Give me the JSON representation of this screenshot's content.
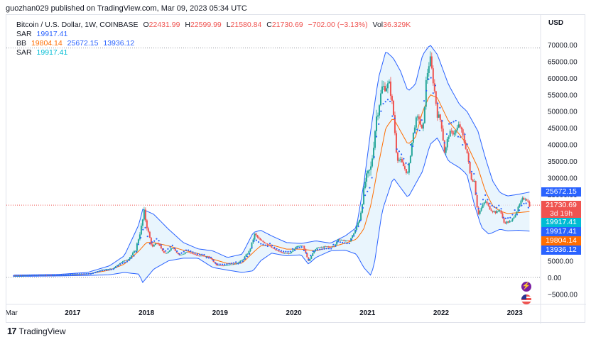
{
  "header": {
    "published": "guozhan029 published on TradingView.com, Mar 09, 2023 05:34 UTC"
  },
  "legend": {
    "title": "Bitcoin / U.S. Dollar, 1W, COINBASE",
    "o_label": "O",
    "o": "22431.99",
    "h_label": "H",
    "h": "22599.99",
    "l_label": "L",
    "l": "21580.84",
    "c_label": "C",
    "c": "21730.69",
    "change": "−702.00 (−3.13%)",
    "vol_label": "Vol",
    "vol": "36.329K",
    "sar1_label": "SAR",
    "sar1": "19917.41",
    "bb_label": "BB",
    "bb1": "19804.14",
    "bb2": "25672.15",
    "bb3": "13936.12",
    "sar2_label": "SAR",
    "sar2": "19917.41"
  },
  "axis": {
    "currency": "USD"
  },
  "tags": {
    "upper": "25672.15",
    "price": "21730.69",
    "countdown": "3d 19h",
    "sar_a": "19917.41",
    "sar_b": "19917.41",
    "mid": "19804.14",
    "lower": "13936.12"
  },
  "footer": {
    "brand": "TradingView"
  },
  "colors": {
    "up": "#26a69a",
    "down": "#ef5350",
    "band": "#2962ff",
    "basis": "#ff6d00",
    "sar": "#2962ff",
    "sar_tag": "#00bcd4",
    "bandfill": "#e3f2fd"
  },
  "chart_data": {
    "type": "candlestick",
    "title": "Bitcoin / U.S. Dollar, 1W, COINBASE",
    "ylim": [
      -7500,
      75000
    ],
    "y_ticks": [
      -5000,
      0,
      5000,
      10000,
      15000,
      20000,
      25000,
      30000,
      35000,
      40000,
      45000,
      50000,
      55000,
      60000,
      65000,
      70000
    ],
    "y_tick_labels": [
      "−5000.00",
      "0.00",
      "5000.00",
      "10000.00",
      "15000.00",
      "20000.00",
      "25000.00",
      "30000.00",
      "35000.00",
      "40000.00",
      "45000.00",
      "50000.00",
      "55000.00",
      "60000.00",
      "65000.00",
      "70000.00"
    ],
    "x_ticks": [
      {
        "year": 2016.17,
        "label": "Mar"
      },
      {
        "year": 2017,
        "label": "2017"
      },
      {
        "year": 2018,
        "label": "2018"
      },
      {
        "year": 2019,
        "label": "2019"
      },
      {
        "year": 2020,
        "label": "2020"
      },
      {
        "year": 2021,
        "label": "2021"
      },
      {
        "year": 2022,
        "label": "2022"
      },
      {
        "year": 2023,
        "label": "2023"
      }
    ],
    "xlim": [
      2016.1,
      2023.35
    ],
    "price_line": 21730.69,
    "max_line": 69000,
    "close_series": [
      [
        2016.2,
        420
      ],
      [
        2016.5,
        650
      ],
      [
        2016.9,
        750
      ],
      [
        2017.0,
        1000
      ],
      [
        2017.25,
        1200
      ],
      [
        2017.4,
        2300
      ],
      [
        2017.55,
        2700
      ],
      [
        2017.65,
        4500
      ],
      [
        2017.75,
        5500
      ],
      [
        2017.85,
        8000
      ],
      [
        2017.93,
        15000
      ],
      [
        2017.97,
        19500
      ],
      [
        2018.02,
        14000
      ],
      [
        2018.08,
        9000
      ],
      [
        2018.15,
        10500
      ],
      [
        2018.25,
        7000
      ],
      [
        2018.35,
        9000
      ],
      [
        2018.45,
        6500
      ],
      [
        2018.55,
        7800
      ],
      [
        2018.7,
        6500
      ],
      [
        2018.85,
        6300
      ],
      [
        2018.95,
        3700
      ],
      [
        2019.05,
        3600
      ],
      [
        2019.2,
        4000
      ],
      [
        2019.3,
        5200
      ],
      [
        2019.4,
        8000
      ],
      [
        2019.47,
        13000
      ],
      [
        2019.55,
        11000
      ],
      [
        2019.65,
        10000
      ],
      [
        2019.75,
        8200
      ],
      [
        2019.85,
        7300
      ],
      [
        2019.95,
        7200
      ],
      [
        2020.05,
        9500
      ],
      [
        2020.12,
        9800
      ],
      [
        2020.2,
        5000
      ],
      [
        2020.3,
        8800
      ],
      [
        2020.45,
        9300
      ],
      [
        2020.55,
        9200
      ],
      [
        2020.6,
        11500
      ],
      [
        2020.75,
        10800
      ],
      [
        2020.82,
        13500
      ],
      [
        2020.9,
        18000
      ],
      [
        2020.97,
        29000
      ],
      [
        2021.05,
        33000
      ],
      [
        2021.12,
        48000
      ],
      [
        2021.2,
        57000
      ],
      [
        2021.3,
        58000
      ],
      [
        2021.35,
        50000
      ],
      [
        2021.4,
        36000
      ],
      [
        2021.45,
        35000
      ],
      [
        2021.55,
        31000
      ],
      [
        2021.6,
        40000
      ],
      [
        2021.65,
        47000
      ],
      [
        2021.7,
        48000
      ],
      [
        2021.75,
        43000
      ],
      [
        2021.8,
        60000
      ],
      [
        2021.85,
        66000
      ],
      [
        2021.9,
        58000
      ],
      [
        2021.95,
        49000
      ],
      [
        2022.0,
        47000
      ],
      [
        2022.05,
        37000
      ],
      [
        2022.1,
        43000
      ],
      [
        2022.2,
        44000
      ],
      [
        2022.25,
        46000
      ],
      [
        2022.35,
        38000
      ],
      [
        2022.4,
        30000
      ],
      [
        2022.45,
        29000
      ],
      [
        2022.5,
        19000
      ],
      [
        2022.6,
        23000
      ],
      [
        2022.65,
        21000
      ],
      [
        2022.7,
        20000
      ],
      [
        2022.75,
        19500
      ],
      [
        2022.8,
        20500
      ],
      [
        2022.85,
        16500
      ],
      [
        2022.95,
        16800
      ],
      [
        2023.05,
        21000
      ],
      [
        2023.1,
        23500
      ],
      [
        2023.15,
        24000
      ],
      [
        2023.2,
        21730
      ]
    ],
    "bb_upper": [
      [
        2016.2,
        700
      ],
      [
        2016.8,
        900
      ],
      [
        2017.2,
        1500
      ],
      [
        2017.5,
        3500
      ],
      [
        2017.7,
        6500
      ],
      [
        2017.9,
        16000
      ],
      [
        2017.95,
        20500
      ],
      [
        2018.1,
        19000
      ],
      [
        2018.3,
        14500
      ],
      [
        2018.5,
        10500
      ],
      [
        2018.7,
        8600
      ],
      [
        2018.9,
        8000
      ],
      [
        2019.1,
        6000
      ],
      [
        2019.3,
        7000
      ],
      [
        2019.45,
        13500
      ],
      [
        2019.55,
        14200
      ],
      [
        2019.7,
        12500
      ],
      [
        2019.9,
        10500
      ],
      [
        2020.1,
        10200
      ],
      [
        2020.3,
        11000
      ],
      [
        2020.5,
        10300
      ],
      [
        2020.7,
        12500
      ],
      [
        2020.85,
        15000
      ],
      [
        2020.95,
        28000
      ],
      [
        2021.05,
        45000
      ],
      [
        2021.15,
        60000
      ],
      [
        2021.25,
        68000
      ],
      [
        2021.35,
        66000
      ],
      [
        2021.45,
        62000
      ],
      [
        2021.55,
        56000
      ],
      [
        2021.65,
        58000
      ],
      [
        2021.75,
        67000
      ],
      [
        2021.85,
        70000
      ],
      [
        2021.95,
        67000
      ],
      [
        2022.1,
        58000
      ],
      [
        2022.25,
        52000
      ],
      [
        2022.35,
        50000
      ],
      [
        2022.5,
        44000
      ],
      [
        2022.6,
        36000
      ],
      [
        2022.7,
        29000
      ],
      [
        2022.8,
        25500
      ],
      [
        2022.9,
        24500
      ],
      [
        2023.05,
        25000
      ],
      [
        2023.2,
        25672
      ]
    ],
    "bb_lower": [
      [
        2016.2,
        300
      ],
      [
        2016.8,
        450
      ],
      [
        2017.2,
        600
      ],
      [
        2017.5,
        800
      ],
      [
        2017.7,
        1500
      ],
      [
        2017.9,
        1000
      ],
      [
        2017.95,
        -1500
      ],
      [
        2018.1,
        2500
      ],
      [
        2018.3,
        5000
      ],
      [
        2018.5,
        5800
      ],
      [
        2018.7,
        5800
      ],
      [
        2018.9,
        3000
      ],
      [
        2019.1,
        2200
      ],
      [
        2019.3,
        1500
      ],
      [
        2019.45,
        2000
      ],
      [
        2019.55,
        5000
      ],
      [
        2019.7,
        7300
      ],
      [
        2019.9,
        6500
      ],
      [
        2020.1,
        6800
      ],
      [
        2020.2,
        4000
      ],
      [
        2020.3,
        6000
      ],
      [
        2020.5,
        8000
      ],
      [
        2020.7,
        8200
      ],
      [
        2020.85,
        7000
      ],
      [
        2020.95,
        3000
      ],
      [
        2021.05,
        500
      ],
      [
        2021.1,
        5000
      ],
      [
        2021.2,
        20000
      ],
      [
        2021.35,
        30000
      ],
      [
        2021.45,
        27000
      ],
      [
        2021.55,
        24000
      ],
      [
        2021.65,
        28000
      ],
      [
        2021.75,
        32000
      ],
      [
        2021.85,
        40000
      ],
      [
        2021.95,
        42000
      ],
      [
        2022.1,
        35000
      ],
      [
        2022.25,
        33000
      ],
      [
        2022.35,
        31000
      ],
      [
        2022.45,
        22000
      ],
      [
        2022.55,
        15000
      ],
      [
        2022.65,
        13000
      ],
      [
        2022.8,
        14500
      ],
      [
        2022.9,
        14000
      ],
      [
        2023.05,
        14200
      ],
      [
        2023.2,
        13936
      ]
    ],
    "bb_basis": [
      [
        2016.2,
        500
      ],
      [
        2016.8,
        650
      ],
      [
        2017.2,
        1000
      ],
      [
        2017.5,
        2200
      ],
      [
        2017.7,
        4000
      ],
      [
        2017.9,
        8000
      ],
      [
        2018.0,
        10500
      ],
      [
        2018.1,
        10500
      ],
      [
        2018.3,
        9500
      ],
      [
        2018.5,
        8200
      ],
      [
        2018.7,
        7200
      ],
      [
        2018.9,
        5500
      ],
      [
        2019.1,
        4200
      ],
      [
        2019.3,
        4300
      ],
      [
        2019.45,
        7500
      ],
      [
        2019.55,
        9500
      ],
      [
        2019.7,
        9800
      ],
      [
        2019.9,
        8500
      ],
      [
        2020.1,
        8500
      ],
      [
        2020.3,
        8000
      ],
      [
        2020.5,
        9100
      ],
      [
        2020.7,
        10300
      ],
      [
        2020.85,
        11500
      ],
      [
        2020.95,
        14500
      ],
      [
        2021.05,
        22000
      ],
      [
        2021.15,
        34000
      ],
      [
        2021.25,
        45000
      ],
      [
        2021.35,
        48000
      ],
      [
        2021.45,
        44000
      ],
      [
        2021.55,
        40000
      ],
      [
        2021.65,
        42000
      ],
      [
        2021.75,
        50000
      ],
      [
        2021.85,
        55000
      ],
      [
        2021.95,
        54000
      ],
      [
        2022.1,
        47000
      ],
      [
        2022.25,
        43000
      ],
      [
        2022.35,
        40000
      ],
      [
        2022.5,
        33000
      ],
      [
        2022.6,
        26000
      ],
      [
        2022.7,
        21500
      ],
      [
        2022.8,
        20000
      ],
      [
        2022.9,
        19200
      ],
      [
        2023.05,
        19500
      ],
      [
        2023.2,
        19804
      ]
    ]
  }
}
